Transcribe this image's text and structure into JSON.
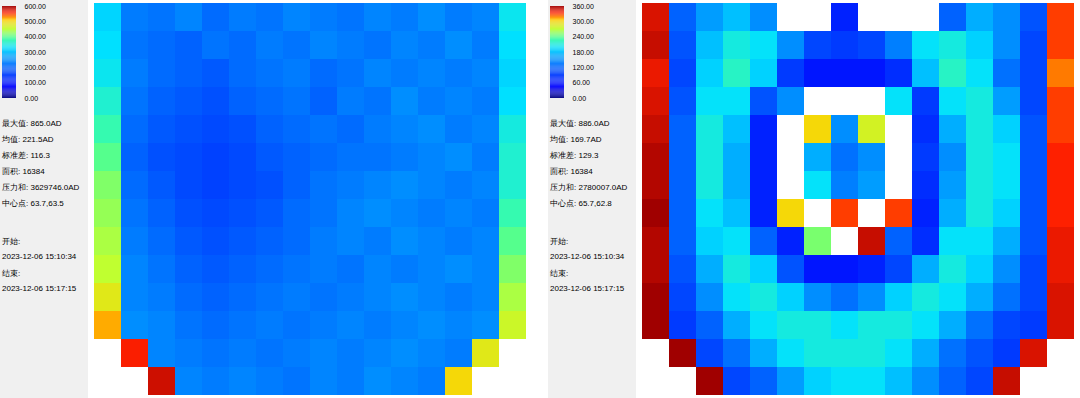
{
  "chart_data": [
    {
      "type": "heatmap",
      "tick_labels": false,
      "colorbar": {
        "range": [
          0,
          600
        ],
        "ticks": [
          {
            "value": 0,
            "label": "0.00"
          },
          {
            "value": 100,
            "label": "100.00"
          },
          {
            "value": 200,
            "label": "200.00"
          },
          {
            "value": 300,
            "label": "300.00"
          },
          {
            "value": 400,
            "label": "400.00"
          },
          {
            "value": 500,
            "label": "500.00"
          },
          {
            "value": 600,
            "label": "600.00"
          }
        ]
      },
      "stats": [
        {
          "label": "最大值:",
          "text": "865.0AD"
        },
        {
          "label": "均值:",
          "text": "221.5AD"
        },
        {
          "label": "标准差:",
          "text": "116.3"
        },
        {
          "label": "面积:",
          "text": "16384"
        },
        {
          "label": "压力和:",
          "text": "3629746.0AD"
        },
        {
          "label": "中心点:",
          "text": "63.7,63.5"
        }
      ],
      "times": [
        {
          "label": "开始:",
          "text": "2023-12-06 15:10:34"
        },
        {
          "label": "结束:",
          "text": "2023-12-06 15:17:15"
        }
      ],
      "cells": [
        [
          320,
          230,
          220,
          240,
          210,
          230,
          220,
          240,
          230,
          220,
          240,
          230,
          250,
          230,
          240,
          340
        ],
        [
          330,
          220,
          210,
          200,
          220,
          210,
          230,
          220,
          240,
          230,
          220,
          240,
          230,
          250,
          230,
          330
        ],
        [
          340,
          230,
          210,
          200,
          190,
          210,
          220,
          230,
          210,
          220,
          240,
          230,
          240,
          230,
          240,
          320
        ],
        [
          360,
          220,
          200,
          190,
          180,
          200,
          210,
          220,
          200,
          230,
          220,
          250,
          230,
          240,
          230,
          330
        ],
        [
          380,
          210,
          190,
          180,
          170,
          180,
          200,
          210,
          220,
          210,
          230,
          240,
          250,
          230,
          240,
          350
        ],
        [
          400,
          200,
          180,
          170,
          160,
          170,
          190,
          200,
          210,
          220,
          220,
          230,
          240,
          250,
          230,
          360
        ],
        [
          420,
          210,
          190,
          170,
          160,
          170,
          180,
          200,
          220,
          230,
          240,
          250,
          240,
          230,
          240,
          360
        ],
        [
          430,
          220,
          200,
          180,
          170,
          180,
          190,
          210,
          220,
          240,
          250,
          240,
          230,
          240,
          230,
          380
        ],
        [
          440,
          230,
          210,
          190,
          180,
          190,
          200,
          210,
          230,
          240,
          230,
          250,
          240,
          230,
          240,
          400
        ],
        [
          450,
          240,
          220,
          200,
          190,
          200,
          210,
          220,
          230,
          220,
          240,
          230,
          240,
          250,
          240,
          420
        ],
        [
          480,
          240,
          230,
          210,
          200,
          210,
          220,
          230,
          220,
          230,
          240,
          250,
          240,
          230,
          240,
          440
        ],
        [
          520,
          250,
          240,
          220,
          210,
          220,
          230,
          220,
          230,
          240,
          230,
          240,
          250,
          240,
          250,
          460
        ],
        [
          null,
          560,
          240,
          230,
          220,
          230,
          220,
          230,
          240,
          230,
          240,
          250,
          240,
          230,
          480,
          null
        ],
        [
          null,
          null,
          580,
          240,
          230,
          240,
          230,
          220,
          240,
          230,
          250,
          240,
          230,
          500,
          null,
          null
        ]
      ]
    },
    {
      "type": "heatmap",
      "tick_labels": false,
      "colorbar": {
        "range": [
          0,
          360
        ],
        "ticks": [
          {
            "value": 0,
            "label": "0.00"
          },
          {
            "value": 60,
            "label": "60.00"
          },
          {
            "value": 120,
            "label": "120.00"
          },
          {
            "value": 180,
            "label": "180.00"
          },
          {
            "value": 240,
            "label": "240.00"
          },
          {
            "value": 300,
            "label": "300.00"
          },
          {
            "value": 360,
            "label": "360.00"
          }
        ]
      },
      "stats": [
        {
          "label": "最大值:",
          "text": "886.0AD"
        },
        {
          "label": "均值:",
          "text": "169.7AD"
        },
        {
          "label": "标准差:",
          "text": "129.3"
        },
        {
          "label": "面积:",
          "text": "16384"
        },
        {
          "label": "压力和:",
          "text": "2780007.0AD"
        },
        {
          "label": "中心点:",
          "text": "65.7,62.8"
        }
      ],
      "times": [
        {
          "label": "开始:",
          "text": "2023-12-06 15:10:34"
        },
        {
          "label": "结束:",
          "text": "2023-12-06 15:17:15"
        }
      ],
      "cells": [
        [
          345,
          120,
          160,
          180,
          150,
          380,
          380,
          70,
          380,
          380,
          380,
          120,
          170,
          150,
          110,
          330
        ],
        [
          350,
          110,
          180,
          210,
          200,
          150,
          100,
          90,
          100,
          140,
          200,
          210,
          190,
          150,
          100,
          330
        ],
        [
          340,
          100,
          190,
          220,
          190,
          90,
          60,
          60,
          60,
          80,
          180,
          220,
          200,
          130,
          100,
          320
        ],
        [
          345,
          110,
          200,
          200,
          110,
          150,
          380,
          370,
          380,
          200,
          90,
          200,
          210,
          160,
          100,
          330
        ],
        [
          350,
          120,
          210,
          180,
          70,
          390,
          300,
          150,
          280,
          380,
          80,
          170,
          210,
          190,
          110,
          330
        ],
        [
          355,
          120,
          210,
          170,
          70,
          400,
          170,
          130,
          150,
          370,
          90,
          150,
          210,
          200,
          110,
          335
        ],
        [
          355,
          120,
          210,
          170,
          70,
          400,
          200,
          140,
          160,
          380,
          80,
          160,
          210,
          200,
          110,
          335
        ],
        [
          360,
          120,
          200,
          180,
          70,
          300,
          400,
          330,
          400,
          330,
          70,
          170,
          210,
          190,
          110,
          335
        ],
        [
          355,
          120,
          190,
          200,
          120,
          70,
          250,
          400,
          350,
          120,
          80,
          200,
          200,
          170,
          110,
          340
        ],
        [
          355,
          110,
          170,
          210,
          190,
          110,
          60,
          60,
          70,
          100,
          170,
          210,
          190,
          150,
          100,
          340
        ],
        [
          360,
          100,
          150,
          200,
          210,
          190,
          150,
          130,
          150,
          190,
          210,
          200,
          170,
          130,
          100,
          345
        ],
        [
          360,
          90,
          120,
          170,
          200,
          210,
          210,
          200,
          210,
          210,
          200,
          170,
          130,
          100,
          90,
          345
        ],
        [
          null,
          360,
          100,
          130,
          170,
          200,
          210,
          210,
          210,
          200,
          170,
          130,
          110,
          90,
          345,
          null
        ],
        [
          null,
          null,
          360,
          100,
          120,
          160,
          190,
          200,
          200,
          180,
          150,
          120,
          100,
          350,
          null,
          null
        ]
      ]
    }
  ]
}
